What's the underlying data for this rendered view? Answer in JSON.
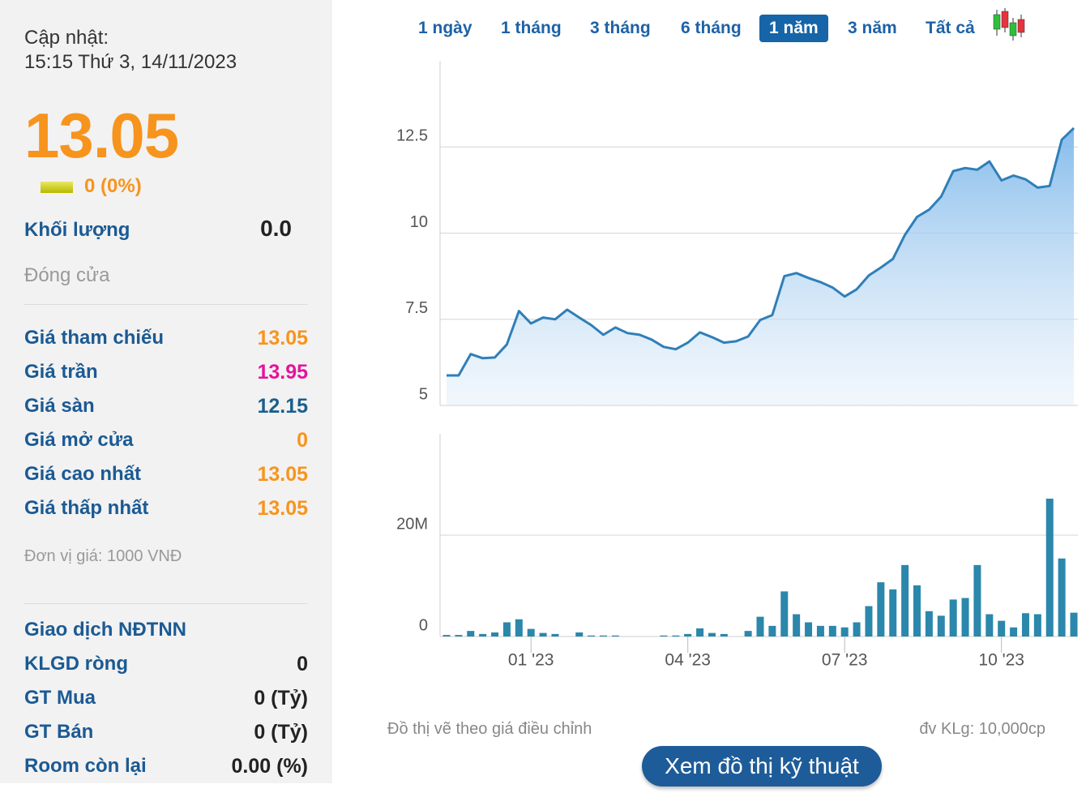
{
  "header": {
    "update_label": "Cập nhật:",
    "update_time": "15:15 Thứ 3, 14/11/2023",
    "price": "13.05",
    "change": "0 (0%)"
  },
  "summary": {
    "volume_label": "Khối lượng",
    "volume": "0.0",
    "status": "Đóng cửa"
  },
  "price_table": {
    "rows": [
      [
        "Giá tham chiếu",
        "13.05"
      ],
      [
        "Giá trần",
        "13.95"
      ],
      [
        "Giá sàn",
        "12.15"
      ],
      [
        "Giá mở cửa",
        "0"
      ],
      [
        "Giá cao nhất",
        "13.05"
      ],
      [
        "Giá thấp nhất",
        "13.05"
      ]
    ]
  },
  "unit_note": "Đơn vị giá: 1000 VNĐ",
  "foreign": {
    "title": "Giao dịch NĐTNN",
    "rows": [
      [
        "KLGD ròng",
        "0"
      ],
      [
        "GT Mua",
        "0 (Tỷ)"
      ],
      [
        "GT Bán",
        "0 (Tỷ)"
      ],
      [
        "Room còn lại",
        "0.00 (%)"
      ]
    ]
  },
  "tabs": {
    "items": [
      "1 ngày",
      "1 tháng",
      "3 tháng",
      "6 tháng",
      "1 năm",
      "3 năm",
      "Tất cả"
    ],
    "active": 4
  },
  "chart_data": [
    {
      "type": "area",
      "color": "#2f7fb8",
      "values": [
        5.87,
        5.87,
        6.49,
        6.37,
        6.39,
        6.77,
        7.74,
        7.38,
        7.55,
        7.5,
        7.78,
        7.55,
        7.33,
        7.05,
        7.26,
        7.1,
        7.05,
        6.91,
        6.7,
        6.63,
        6.82,
        7.12,
        6.98,
        6.82,
        6.86,
        7.0,
        7.48,
        7.62,
        8.75,
        8.84,
        8.7,
        8.58,
        8.42,
        8.16,
        8.37,
        8.77,
        9.0,
        9.25,
        9.95,
        10.47,
        10.68,
        11.06,
        11.8,
        11.89,
        11.84,
        12.08,
        11.53,
        11.67,
        11.56,
        11.32,
        11.37,
        12.71,
        13.05
      ],
      "ylim": [
        5,
        15
      ],
      "yticks": [
        5,
        7.5,
        10,
        12.5
      ],
      "grid": true
    },
    {
      "type": "bar",
      "color": "#2b87ab",
      "categories": [
        null,
        null,
        null,
        null,
        null,
        null,
        null,
        "01 '23",
        null,
        null,
        null,
        null,
        null,
        null,
        null,
        null,
        null,
        null,
        null,
        null,
        "04 '23",
        null,
        null,
        null,
        null,
        null,
        null,
        null,
        null,
        null,
        null,
        null,
        null,
        "07 '23",
        null,
        null,
        null,
        null,
        null,
        null,
        null,
        null,
        null,
        null,
        null,
        null,
        "10 '23",
        null,
        null,
        null,
        null,
        null,
        null
      ],
      "values": [
        300000,
        300000,
        1100000,
        500000,
        800000,
        2800000,
        3400000,
        1500000,
        700000,
        500000,
        0,
        800000,
        200000,
        200000,
        200000,
        0,
        0,
        0,
        200000,
        200000,
        500000,
        1600000,
        700000,
        500000,
        0,
        1100000,
        3900000,
        2100000,
        8900000,
        4400000,
        2800000,
        2100000,
        2100000,
        1800000,
        2800000,
        6000000,
        10700000,
        9300000,
        14100000,
        10100000,
        5000000,
        4100000,
        7300000,
        7600000,
        14100000,
        4400000,
        3100000,
        1800000,
        4600000,
        4400000,
        27200000,
        15400000,
        4700000
      ],
      "ylim": [
        0,
        40000000
      ],
      "yticks": [
        0,
        {
          "value": 20000000,
          "label": "20M"
        }
      ],
      "grid": true
    }
  ],
  "footer": {
    "left_note": "Đồ thị vẽ theo giá điều chỉnh",
    "right_note": "đv KLg: 10,000cp",
    "button": "Xem đồ thị kỹ thuật"
  }
}
